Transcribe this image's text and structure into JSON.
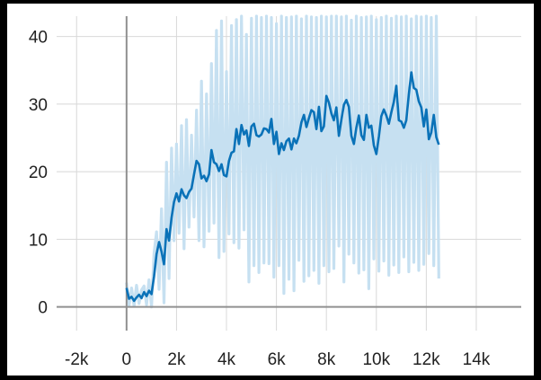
{
  "chart_data": {
    "type": "line",
    "title": "",
    "xlabel": "",
    "ylabel": "",
    "xlim": [
      -2800,
      15800
    ],
    "ylim": [
      -3.5,
      43
    ],
    "x_ticks": [
      -2000,
      0,
      2000,
      4000,
      6000,
      8000,
      10000,
      12000,
      14000
    ],
    "x_tick_labels": [
      "-2k",
      "0",
      "2k",
      "4k",
      "6k",
      "8k",
      "10k",
      "12k",
      "14k"
    ],
    "y_ticks": [
      0,
      10,
      20,
      30,
      40
    ],
    "y_tick_labels": [
      "0",
      "10",
      "20",
      "30",
      "40"
    ],
    "grid": true,
    "legend": "none",
    "colors": {
      "smoothed": "#0a72b8",
      "raw": "#c6e0f1",
      "grid": "#d8d8d8",
      "zero_axis": "#909090"
    },
    "series": [
      {
        "role": "smoothed",
        "x": [
          0,
          100,
          200,
          300,
          400,
          500,
          600,
          700,
          800,
          900,
          1000,
          1100,
          1200,
          1300,
          1400,
          1500,
          1600,
          1700,
          1800,
          1900,
          2000,
          2100,
          2200,
          2300,
          2400,
          2500,
          2600,
          2700,
          2800,
          2900,
          3000,
          3100,
          3200,
          3300,
          3400,
          3500,
          3600,
          3700,
          3800,
          3900,
          4000,
          4100,
          4200,
          4300,
          4400,
          4500,
          4600,
          4700,
          4800,
          4900,
          5000,
          5100,
          5200,
          5300,
          5400,
          5500,
          5600,
          5700,
          5800,
          5900,
          6000,
          6100,
          6200,
          6300,
          6400,
          6500,
          6600,
          6700,
          6800,
          6900,
          7000,
          7100,
          7200,
          7300,
          7400,
          7500,
          7600,
          7700,
          7800,
          7900,
          8000,
          8100,
          8200,
          8300,
          8400,
          8500,
          8600,
          8700,
          8800,
          8900,
          9000,
          9100,
          9200,
          9300,
          9400,
          9500,
          9600,
          9700,
          9800,
          9900,
          10000,
          10100,
          10200,
          10300,
          10400,
          10500,
          10600,
          10700,
          10800,
          10900,
          11000,
          11100,
          11200,
          11300,
          11400,
          11500,
          11600,
          11700,
          11800,
          11900,
          12000,
          12100,
          12200,
          12300,
          12400,
          12500
        ],
        "y": [
          2.8,
          1.2,
          1.5,
          0.9,
          1.4,
          1.8,
          1.3,
          2.2,
          1.6,
          2.4,
          1.9,
          4.5,
          7.8,
          9.6,
          8.2,
          6.3,
          11.5,
          9.8,
          13.2,
          15.5,
          16.8,
          15.6,
          17.4,
          16.5,
          16.1,
          17.0,
          17.5,
          19.6,
          21.6,
          21.1,
          19.0,
          19.4,
          18.6,
          19.6,
          23.2,
          21.4,
          21.1,
          20.1,
          21.1,
          19.5,
          19.3,
          21.6,
          22.8,
          23.0,
          26.3,
          24.1,
          26.9,
          25.5,
          26.1,
          23.8,
          26.7,
          27.1,
          25.4,
          25.2,
          25.5,
          26.4,
          26.3,
          25.8,
          27.8,
          24.1,
          25.9,
          22.6,
          24.2,
          23.2,
          24.5,
          24.9,
          23.3,
          24.9,
          24.2,
          25.3,
          27.3,
          28.4,
          26.6,
          27.9,
          29.1,
          28.8,
          26.3,
          29.6,
          26.0,
          26.7,
          31.2,
          30.2,
          28.6,
          27.6,
          29.5,
          25.3,
          27.7,
          29.9,
          30.6,
          29.6,
          25.3,
          24.1,
          26.5,
          28.3,
          25.4,
          24.7,
          28.4,
          26.5,
          26.8,
          23.9,
          22.6,
          25.2,
          28.2,
          29.2,
          28.3,
          27.1,
          28.8,
          30.3,
          32.7,
          27.6,
          27.4,
          26.5,
          27.6,
          31.4,
          34.7,
          32.4,
          32.1,
          30.4,
          29.5,
          26.7,
          29.2,
          24.8,
          25.8,
          28.4,
          25.1,
          24.0
        ]
      },
      {
        "role": "raw",
        "x": [
          0,
          100,
          200,
          300,
          400,
          500,
          600,
          700,
          800,
          900,
          1000,
          1100,
          1200,
          1300,
          1400,
          1500,
          1600,
          1700,
          1800,
          1900,
          2000,
          2100,
          2200,
          2300,
          2400,
          2500,
          2600,
          2700,
          2800,
          2900,
          3000,
          3100,
          3200,
          3300,
          3400,
          3500,
          3600,
          3700,
          3800,
          3900,
          4000,
          4100,
          4200,
          4300,
          4400,
          4500,
          4600,
          4700,
          4800,
          4900,
          5000,
          5100,
          5200,
          5300,
          5400,
          5500,
          5600,
          5700,
          5800,
          5900,
          6000,
          6100,
          6200,
          6300,
          6400,
          6500,
          6600,
          6700,
          6800,
          6900,
          7000,
          7100,
          7200,
          7300,
          7400,
          7500,
          7600,
          7700,
          7800,
          7900,
          8000,
          8100,
          8200,
          8300,
          8400,
          8500,
          8600,
          8700,
          8800,
          8900,
          9000,
          9100,
          9200,
          9300,
          9400,
          9500,
          9600,
          9700,
          9800,
          9900,
          10000,
          10100,
          10200,
          10300,
          10400,
          10500,
          10600,
          10700,
          10800,
          10900,
          11000,
          11100,
          11200,
          11300,
          11400,
          11500,
          11600,
          11700,
          11800,
          11900,
          12000,
          12100,
          12200,
          12300,
          12400,
          12500
        ],
        "y": [
          3.6,
          0.2,
          2.8,
          0.1,
          3.2,
          0.5,
          2.5,
          3.1,
          0.3,
          4.0,
          0.0,
          7.9,
          11.1,
          2.6,
          14.5,
          0.6,
          21.4,
          4.2,
          23.5,
          9.8,
          24.1,
          10.9,
          26.8,
          8.6,
          27.7,
          11.8,
          25.4,
          13.3,
          29.1,
          9.8,
          33.4,
          8.9,
          31.5,
          11.2,
          36.0,
          12.4,
          40.9,
          7.3,
          42.3,
          8.2,
          34.8,
          10.8,
          41.6,
          9.5,
          42.5,
          8.7,
          43.0,
          11.4,
          40.3,
          3.7,
          42.7,
          6.1,
          43.0,
          5.1,
          42.8,
          6.5,
          43.0,
          6.4,
          42.8,
          4.4,
          41.9,
          6.1,
          43.0,
          2.0,
          42.8,
          4.1,
          42.9,
          2.4,
          43.0,
          6.9,
          42.6,
          3.8,
          43.0,
          4.6,
          42.9,
          5.4,
          42.8,
          3.5,
          43.0,
          6.1,
          42.9,
          5.2,
          43.0,
          5.7,
          43.0,
          9.0,
          42.9,
          3.7,
          43.0,
          7.8,
          42.4,
          6.5,
          43.0,
          5.0,
          42.8,
          5.5,
          42.9,
          2.7,
          43.0,
          7.1,
          42.5,
          5.3,
          42.8,
          6.8,
          43.0,
          4.7,
          42.7,
          6.2,
          43.0,
          5.1,
          42.9,
          7.4,
          43.0,
          5.2,
          42.6,
          6.6,
          43.0,
          5.4,
          42.9,
          6.3,
          43.0,
          7.9,
          42.8,
          6.1,
          43.0,
          4.2
        ]
      }
    ]
  }
}
